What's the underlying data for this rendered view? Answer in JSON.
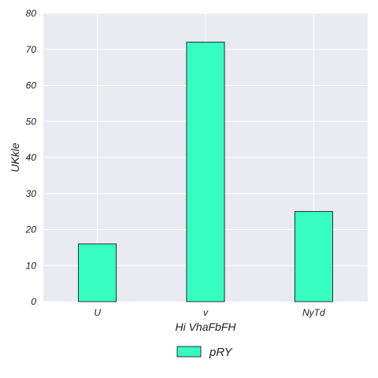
{
  "chart_data": {
    "type": "bar",
    "categories": [
      "U",
      "v",
      "NyTd"
    ],
    "series": [
      {
        "name": "pRY",
        "values": [
          16,
          72,
          25
        ],
        "color": "#37ffc1"
      }
    ],
    "xlabel": "Hi  VhaFbFH",
    "ylabel": "UKkle",
    "ylim": [
      0,
      80
    ],
    "yticks": [
      0,
      10,
      20,
      30,
      40,
      50,
      60,
      70,
      80
    ],
    "grid": true,
    "legend_position": "bottom-center",
    "plot_background": "#eaeaf2",
    "edge_color": "#000000"
  }
}
